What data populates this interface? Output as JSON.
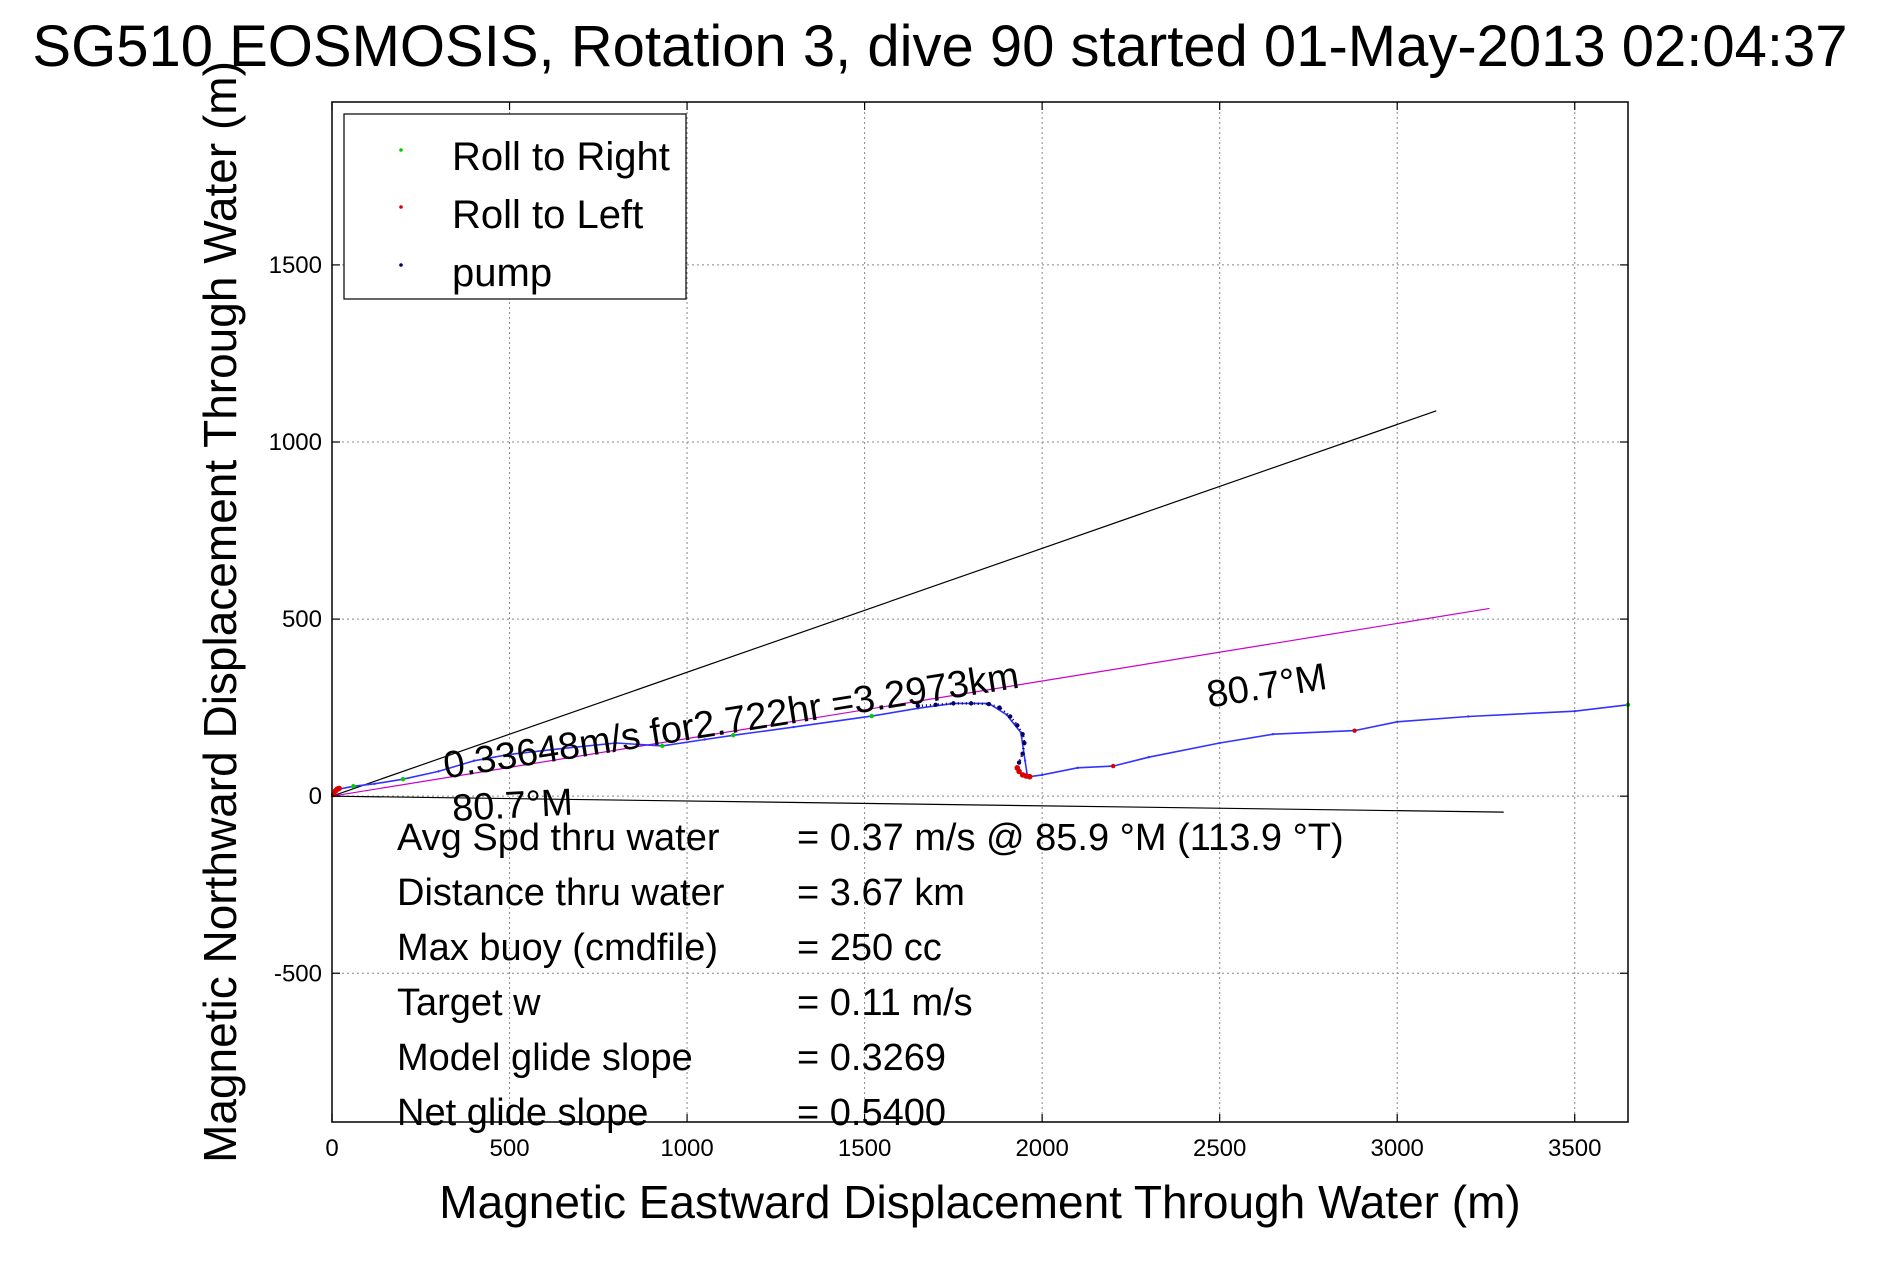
{
  "chart_data": {
    "type": "line",
    "title": "SG510 EOSMOSIS, Rotation 3, dive 90 started 01-May-2013 02:04:37",
    "xlabel": "Magnetic Eastward Displacement Through Water (m)",
    "ylabel": "Magnetic Northward Displacement Through Water (m)",
    "xlim": [
      0,
      3650
    ],
    "ylim": [
      -920,
      1960
    ],
    "xticks": [
      0,
      500,
      1000,
      1500,
      2000,
      2500,
      3000,
      3500
    ],
    "yticks": [
      -500,
      0,
      500,
      1000,
      1500
    ],
    "grid": true,
    "legend": {
      "placement": "top-left",
      "entries": [
        {
          "label": "Roll to Right",
          "color": "#00cc00"
        },
        {
          "label": "Roll to Left",
          "color": "#dd0000"
        },
        {
          "label": "pump",
          "color": "#000066"
        }
      ]
    },
    "series": [
      {
        "color": "#3333ff",
        "points": [
          [
            0,
            0
          ],
          [
            20,
            20
          ],
          [
            60,
            28
          ],
          [
            120,
            35
          ],
          [
            200,
            48
          ],
          [
            300,
            70
          ],
          [
            400,
            100
          ],
          [
            500,
            118
          ],
          [
            650,
            135
          ],
          [
            800,
            150
          ],
          [
            930,
            142
          ],
          [
            1050,
            160
          ],
          [
            1130,
            172
          ],
          [
            1300,
            195
          ],
          [
            1520,
            226
          ],
          [
            1650,
            248
          ],
          [
            1750,
            262
          ],
          [
            1850,
            262
          ],
          [
            1900,
            230
          ],
          [
            1940,
            180
          ],
          [
            1952,
            100
          ],
          [
            1958,
            60
          ],
          [
            1965,
            55
          ],
          [
            2000,
            60
          ],
          [
            2100,
            80
          ],
          [
            2200,
            85
          ],
          [
            2300,
            110
          ],
          [
            2500,
            150
          ],
          [
            2650,
            175
          ],
          [
            2880,
            185
          ],
          [
            3000,
            210
          ],
          [
            3200,
            225
          ],
          [
            3500,
            240
          ],
          [
            3650,
            258
          ]
        ]
      },
      {
        "color": "#000066",
        "points": [
          [
            1650,
            255
          ],
          [
            1700,
            258
          ],
          [
            1750,
            262
          ],
          [
            1800,
            262
          ],
          [
            1850,
            260
          ],
          [
            1880,
            250
          ],
          [
            1910,
            225
          ],
          [
            1930,
            200
          ],
          [
            1945,
            175
          ],
          [
            1950,
            150
          ],
          [
            1945,
            120
          ],
          [
            1935,
            95
          ],
          [
            1930,
            80
          ]
        ]
      },
      {
        "color": "#dd0000",
        "points": [
          [
            5,
            5
          ],
          [
            10,
            15
          ],
          [
            15,
            20
          ],
          [
            20,
            22
          ],
          [
            1930,
            80
          ],
          [
            1935,
            70
          ],
          [
            1945,
            60
          ],
          [
            1955,
            57
          ],
          [
            1965,
            55
          ]
        ]
      },
      {
        "color": "#00cc00",
        "points": [
          [
            60,
            28
          ],
          [
            200,
            48
          ],
          [
            930,
            142
          ],
          [
            1130,
            172
          ],
          [
            1520,
            226
          ],
          [
            3650,
            258
          ]
        ]
      },
      {
        "color": "#dd0000",
        "points": [
          [
            2200,
            85
          ],
          [
            2880,
            185
          ]
        ]
      }
    ],
    "reference_lines": [
      {
        "color": "#000000",
        "from": [
          0,
          0
        ],
        "to": [
          3110,
          1088
        ]
      },
      {
        "color": "#cc00cc",
        "from": [
          0,
          0
        ],
        "to": [
          3260,
          530
        ]
      },
      {
        "color": "#000000",
        "from": [
          0,
          0
        ],
        "to": [
          3300,
          -45
        ]
      }
    ],
    "annotations": [
      {
        "text": "0.33648m/s for2.722hr =3.2973km",
        "x": 320,
        "y": 50,
        "rotate": -9
      },
      {
        "text": "80.7°M",
        "x": 340,
        "y": -70,
        "rotate": -3
      },
      {
        "text": "80.7°M",
        "x": 2470,
        "y": 250,
        "rotate": -9
      }
    ],
    "stats": [
      {
        "label": "Avg Spd thru water",
        "value": "=  0.37 m/s @  85.9 °M (113.9 °T)"
      },
      {
        "label": "Distance thru water",
        "value": "=  3.67 km"
      },
      {
        "label": "Max buoy (cmdfile)",
        "value": "= 250 cc"
      },
      {
        "label": "Target w",
        "value": "= 0.11 m/s"
      },
      {
        "label": "Model glide slope",
        "value": "= 0.3269"
      },
      {
        "label": "Net glide slope",
        "value": "= 0.5400"
      }
    ]
  }
}
